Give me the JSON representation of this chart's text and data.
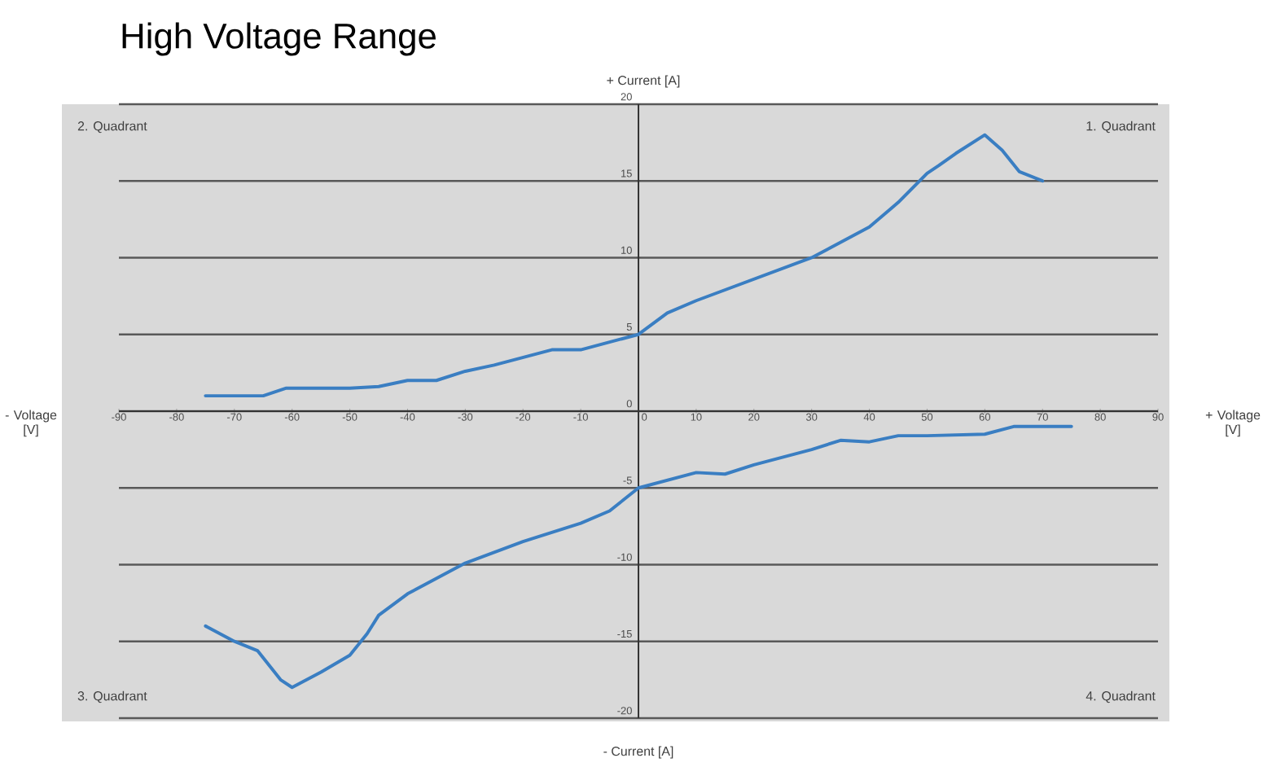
{
  "chart_data": {
    "type": "line",
    "title": "High Voltage Range",
    "xlabel": "+ Voltage [V]",
    "ylabel": "+ Current [A]",
    "annotations": [
      "- Voltage [V]",
      "- Current [A]",
      "2. Quadrant",
      "1. Quadrant",
      "3. Quadrant",
      "4. Quadrant"
    ],
    "xlim": [
      -90,
      90
    ],
    "ylim": [
      -20,
      20
    ],
    "xticks": [
      -90,
      -80,
      -70,
      -60,
      -50,
      -40,
      -30,
      -20,
      -10,
      0,
      10,
      20,
      30,
      40,
      50,
      60,
      70,
      80,
      90
    ],
    "yticks": [
      -20,
      -15,
      -10,
      -5,
      0,
      5,
      10,
      15,
      20
    ],
    "grid": "y",
    "series": [
      {
        "color": "#3a7ec2",
        "x": [
          -75,
          -65,
          -61,
          -50,
          -45,
          -40,
          -35,
          -30,
          -25,
          -20,
          -15,
          -10,
          -5,
          0,
          5,
          10,
          15,
          20,
          25,
          30,
          35,
          40,
          45,
          50,
          52,
          55,
          60,
          63,
          66,
          70
        ],
        "values": [
          1.0,
          1.0,
          1.5,
          1.5,
          1.6,
          2.0,
          2.0,
          2.6,
          3.0,
          3.5,
          4.0,
          4.0,
          4.5,
          5.0,
          6.4,
          7.2,
          7.9,
          8.6,
          9.3,
          10.0,
          11.0,
          12.0,
          13.6,
          15.5,
          16.0,
          16.8,
          18.0,
          17.0,
          15.6,
          15.0
        ]
      },
      {
        "color": "#3a7ec2",
        "x": [
          -75,
          -70,
          -66,
          -62,
          -60,
          -55,
          -50,
          -47,
          -45,
          -40,
          -30,
          -20,
          -10,
          -5,
          0,
          10,
          15,
          20,
          30,
          35,
          40,
          45,
          50,
          60,
          65,
          70,
          75
        ],
        "values": [
          -14.0,
          -15.0,
          -15.6,
          -17.5,
          -18.0,
          -17.0,
          -15.9,
          -14.5,
          -13.3,
          -11.9,
          -9.9,
          -8.5,
          -7.3,
          -6.5,
          -5.0,
          -4.0,
          -4.1,
          -3.5,
          -2.5,
          -1.9,
          -2.0,
          -1.6,
          -1.6,
          -1.5,
          -1.0,
          -1.0,
          -1.0
        ]
      }
    ]
  }
}
